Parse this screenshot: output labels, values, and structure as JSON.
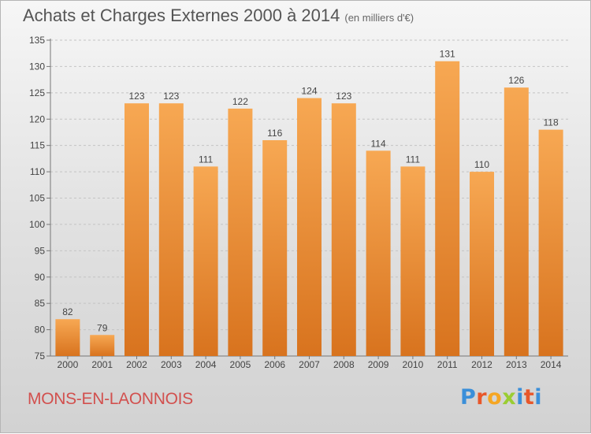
{
  "header": {
    "title": "Achats et Charges Externes 2000 à 2014",
    "unit": "(en milliers d'€)"
  },
  "footer": {
    "commune": "MONS-EN-LAONNOIS",
    "logo": [
      "P",
      "r",
      "o",
      "x",
      "i",
      "t",
      "i"
    ]
  },
  "colors": {
    "bar_top": "#f7a853",
    "bar_bottom": "#d8731e",
    "commune_text": "#d2504e",
    "logo_letters": [
      "#3b8fd9",
      "#e8572a",
      "#f5a623",
      "#9acd32",
      "#3b8fd9",
      "#e8572a",
      "#3b8fd9"
    ]
  },
  "chart_data": {
    "type": "bar",
    "categories": [
      "2000",
      "2001",
      "2002",
      "2003",
      "2004",
      "2005",
      "2006",
      "2007",
      "2008",
      "2009",
      "2010",
      "2011",
      "2012",
      "2013",
      "2014"
    ],
    "values": [
      82,
      79,
      123,
      123,
      111,
      122,
      116,
      124,
      123,
      114,
      111,
      131,
      110,
      126,
      118
    ],
    "value_labels": [
      "82",
      "79",
      "123",
      "123",
      "111",
      "122",
      "116",
      "124",
      "123",
      "114",
      "111",
      "131",
      "110",
      "126",
      "118"
    ],
    "ylim": [
      75,
      135
    ],
    "yticks": [
      "75",
      "80",
      "85",
      "90",
      "95",
      "100",
      "105",
      "110",
      "115",
      "120",
      "125",
      "130",
      "135"
    ],
    "grid": "horizontal dashed",
    "legend": "none"
  }
}
